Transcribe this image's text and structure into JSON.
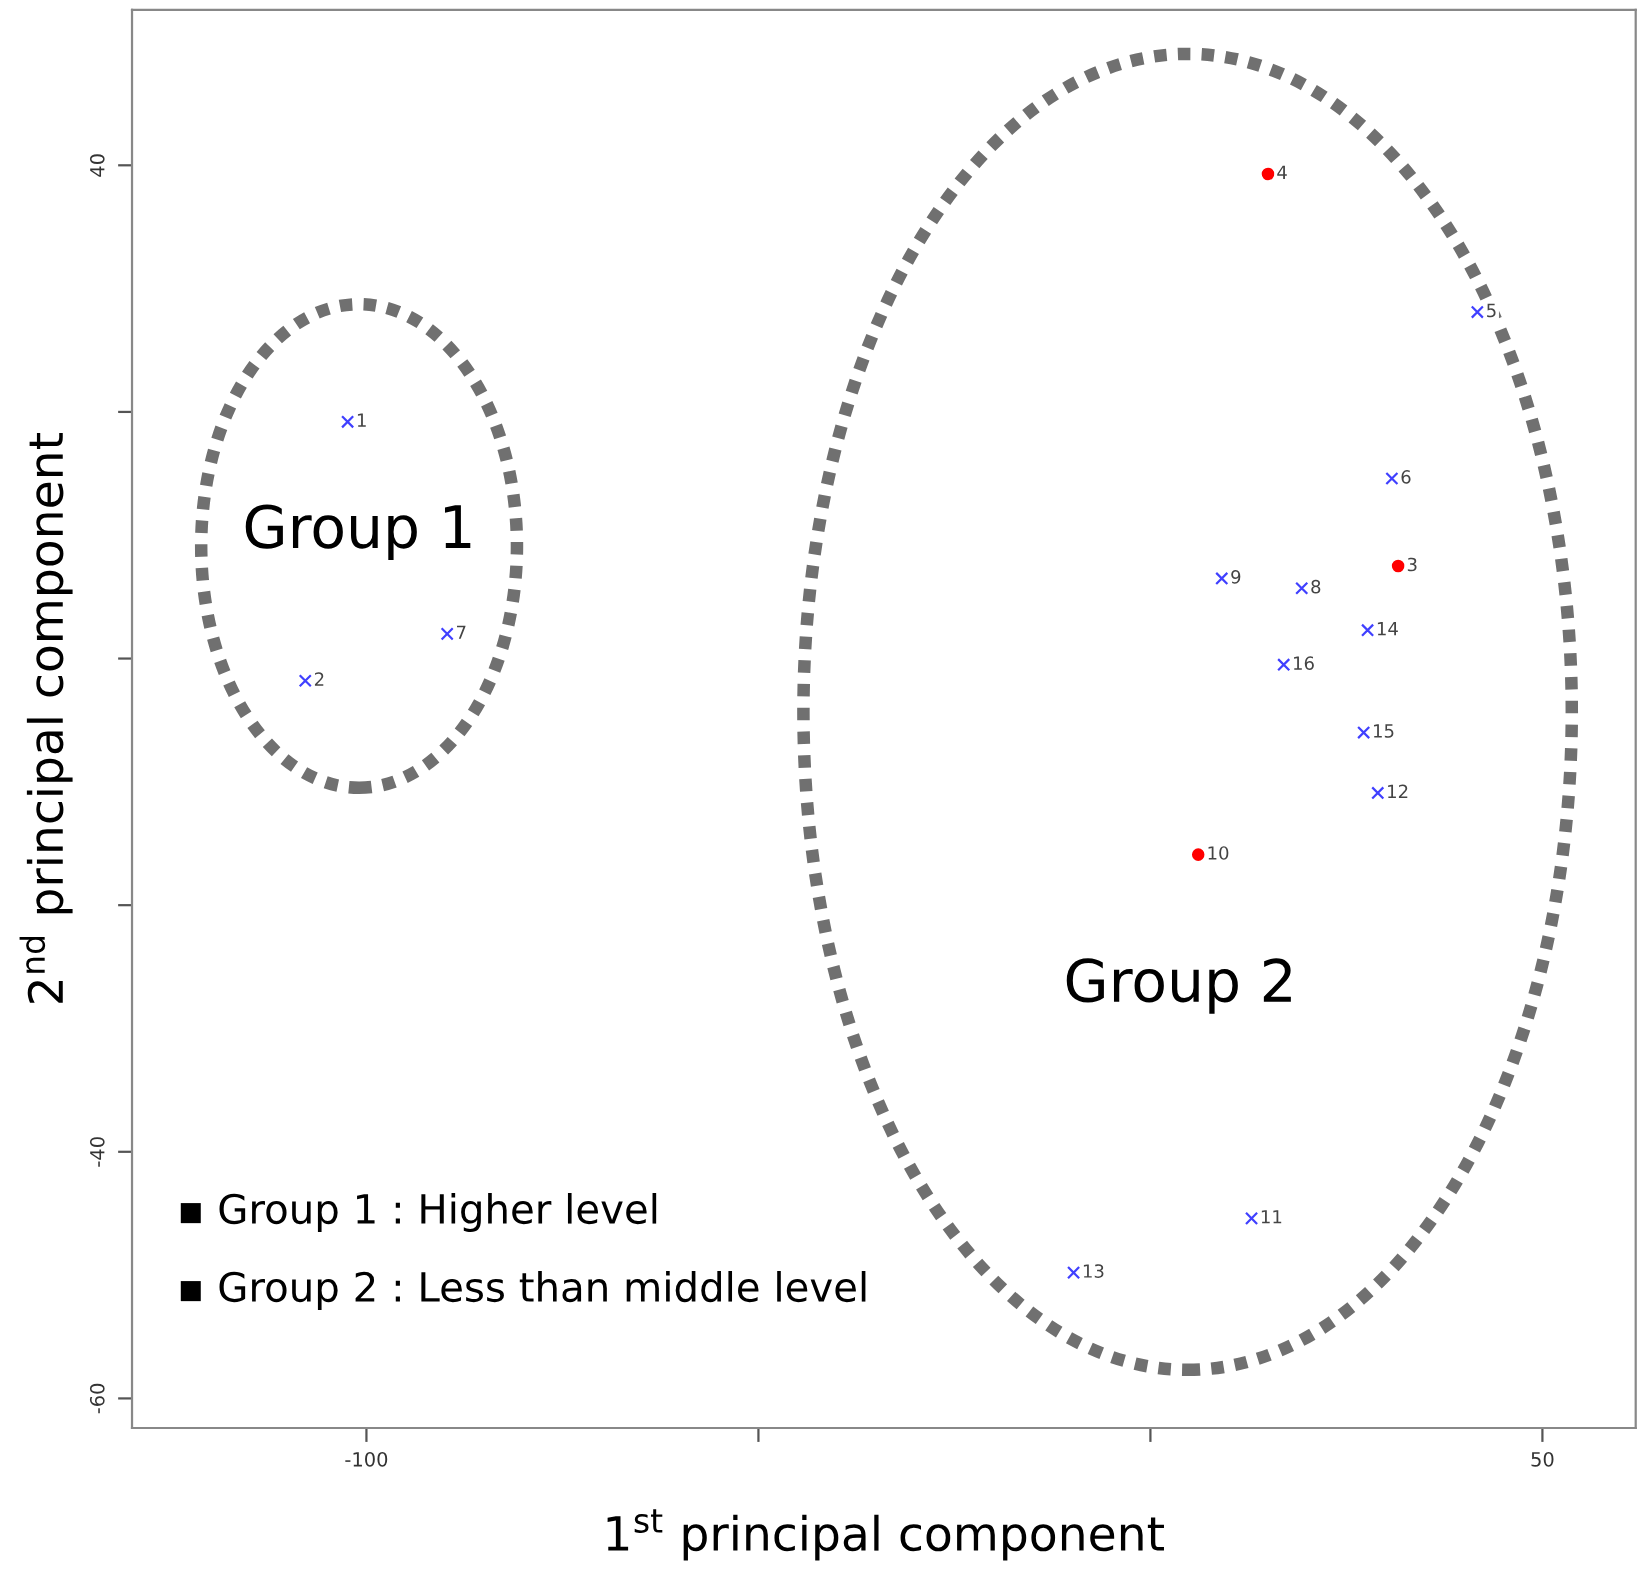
{
  "chart_data": {
    "type": "scatter",
    "xlabel": "1$^{st}$ principal component",
    "ylabel": "2$^{nd}$ principal component",
    "xlim": [
      -129.9,
      61.9
    ],
    "ylim": [
      -62.4,
      52.6
    ],
    "xticks": [
      -100,
      {
        "value": -50,
        "label": null
      },
      {
        "value": 0,
        "label": null
      },
      50
    ],
    "yticks": [
      -60,
      -40,
      {
        "value": -20,
        "label": null
      },
      {
        "value": 0,
        "label": null
      },
      {
        "value": 20,
        "label": null
      },
      40
    ],
    "grid": false,
    "legend": false,
    "series": [
      {
        "color": "#4040ff",
        "marker": "cross",
        "x": [
          -102.4,
          -107.8,
          -89.7,
          41.7,
          30.8,
          9.1,
          19.3,
          27.7,
          17.0,
          27.2,
          29.0,
          12.9,
          -9.8
        ],
        "values": [
          19.2,
          -1.8,
          2.0,
          28.1,
          14.6,
          6.5,
          5.7,
          2.3,
          -0.5,
          -6.0,
          -10.9,
          -45.4,
          -49.8
        ]
      },
      {
        "color": "#ff0000",
        "marker": "circle",
        "x": [
          15.0,
          31.6,
          6.1
        ],
        "values": [
          39.3,
          7.5,
          -15.9
        ]
      }
    ],
    "annotations": [
      "Group 1",
      "Group 2",
      "▪ Group 1 : Higher level",
      "▪ Group 2 : Less than middle level",
      {
        "text": "1",
        "x": -102.4,
        "y": 19.2
      },
      {
        "text": "2",
        "x": -107.8,
        "y": -1.8
      },
      {
        "text": "7",
        "x": -89.7,
        "y": 2.0
      },
      {
        "text": "4",
        "x": 15.0,
        "y": 39.3
      },
      {
        "text": "5",
        "x": 41.7,
        "y": 28.1
      },
      {
        "text": "6",
        "x": 30.8,
        "y": 14.6
      },
      {
        "text": "3",
        "x": 31.6,
        "y": 7.5
      },
      {
        "text": "9",
        "x": 9.1,
        "y": 6.5
      },
      {
        "text": "8",
        "x": 19.3,
        "y": 5.7
      },
      {
        "text": "14",
        "x": 27.7,
        "y": 2.3
      },
      {
        "text": "16",
        "x": 17.0,
        "y": -0.5
      },
      {
        "text": "15",
        "x": 27.2,
        "y": -6.0
      },
      {
        "text": "12",
        "x": 29.0,
        "y": -10.9
      },
      {
        "text": "10",
        "x": 6.1,
        "y": -15.9
      },
      {
        "text": "11",
        "x": 12.9,
        "y": -45.4
      },
      {
        "text": "13",
        "x": -9.8,
        "y": -49.8
      }
    ]
  }
}
